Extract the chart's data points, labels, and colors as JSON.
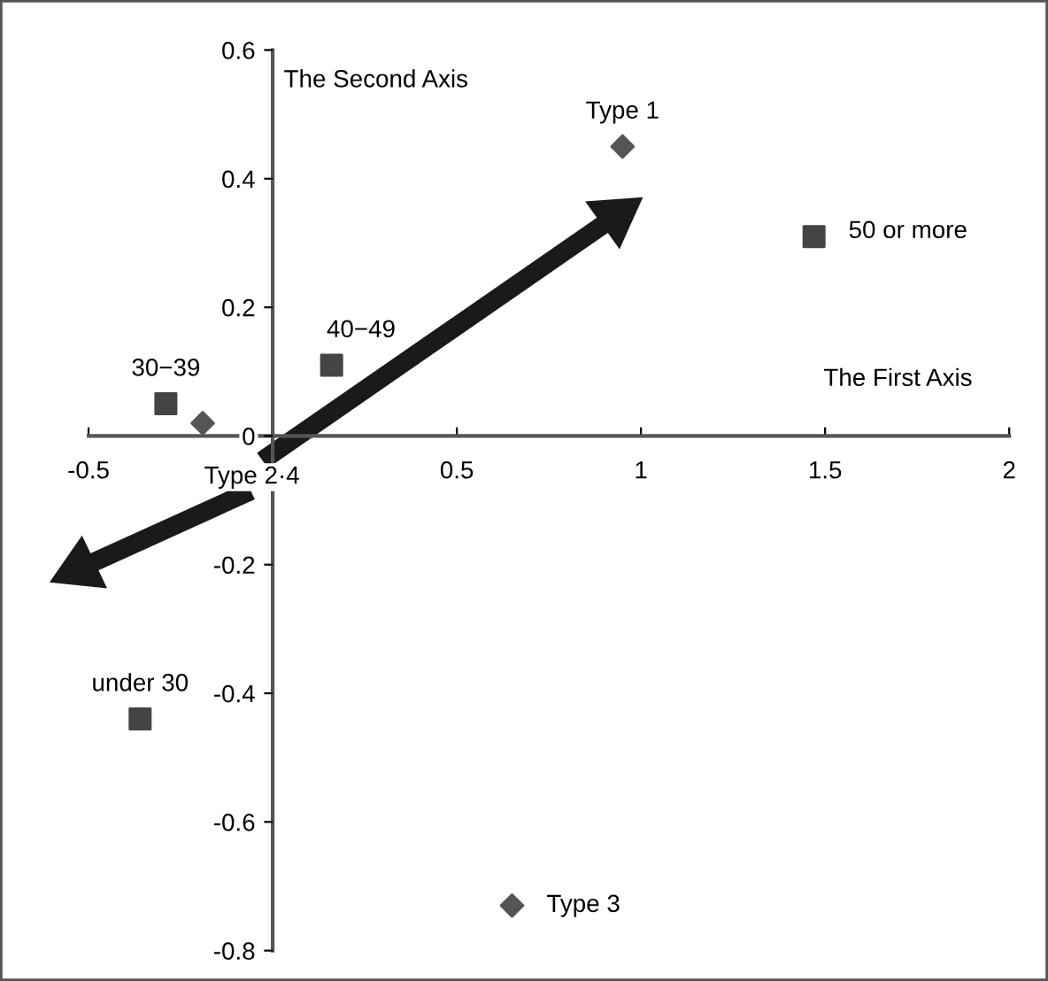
{
  "chart_data": {
    "type": "scatter",
    "xlabel": "The First Axis",
    "ylabel": "The Second Axis",
    "xlim": [
      -0.5,
      2
    ],
    "ylim": [
      -0.8,
      0.6
    ],
    "xticks": [
      -0.5,
      0.5,
      1,
      1.5,
      2
    ],
    "yticks": [
      -0.8,
      -0.6,
      -0.4,
      -0.2,
      0,
      0.2,
      0.4,
      0.6
    ],
    "grid": false,
    "legend": false,
    "series": [
      {
        "color": "#444444",
        "marker": "square",
        "x": [
          -0.36,
          -0.29,
          0.16,
          1.47
        ],
        "values": [
          -0.44,
          0.05,
          0.11,
          0.31
        ]
      },
      {
        "color": "#555555",
        "marker": "diamond",
        "x": [
          0.95,
          -0.19,
          0.65
        ],
        "values": [
          0.45,
          0.02,
          -0.73
        ]
      }
    ],
    "annotations": [
      {
        "text": "under 30",
        "x": -0.36,
        "y": -0.44
      },
      {
        "text": "30−39",
        "x": -0.29,
        "y": 0.05
      },
      {
        "text": "40−49",
        "x": 0.16,
        "y": 0.11
      },
      {
        "text": "50 or more",
        "x": 1.47,
        "y": 0.31
      },
      {
        "text": "Type 1",
        "x": 0.95,
        "y": 0.45
      },
      {
        "text": "Type 2·4",
        "x": -0.19,
        "y": 0.02
      },
      {
        "text": "Type 3",
        "x": 0.65,
        "y": -0.73
      }
    ]
  }
}
